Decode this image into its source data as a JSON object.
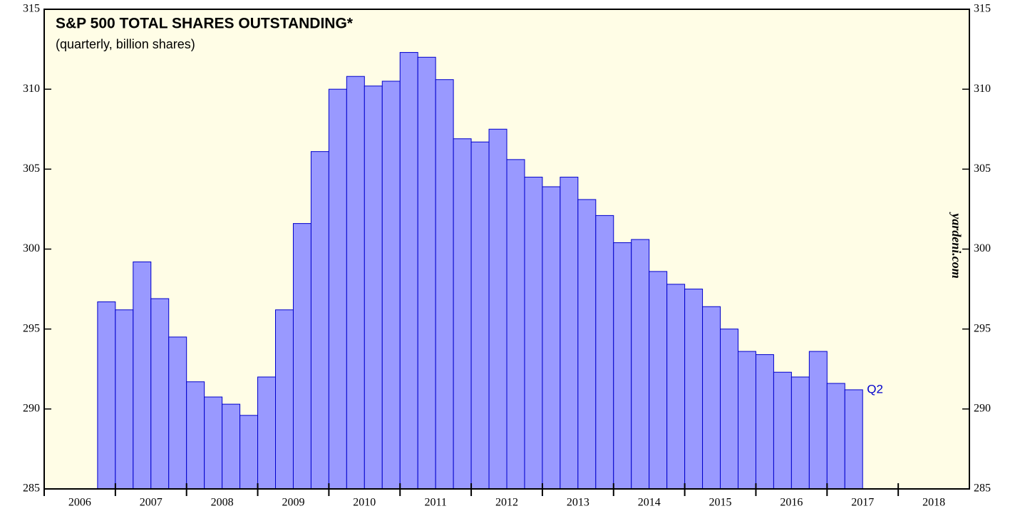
{
  "chart_data": {
    "type": "bar",
    "title": "S&P 500 TOTAL SHARES OUTSTANDING*",
    "subtitle": "(quarterly, billion shares)",
    "annotation": "Q2",
    "source": "yardeni.com",
    "x": [
      2006.75,
      2007,
      2007.25,
      2007.5,
      2007.75,
      2008,
      2008.25,
      2008.5,
      2008.75,
      2009,
      2009.25,
      2009.5,
      2009.75,
      2010,
      2010.25,
      2010.5,
      2010.75,
      2011,
      2011.25,
      2011.5,
      2011.75,
      2012,
      2012.25,
      2012.5,
      2012.75,
      2013,
      2013.25,
      2013.5,
      2013.75,
      2014,
      2014.25,
      2014.5,
      2014.75,
      2015,
      2015.25,
      2015.5,
      2015.75,
      2016,
      2016.25,
      2016.5,
      2016.75,
      2017,
      2017.25
    ],
    "values": [
      296.7,
      296.2,
      299.2,
      296.9,
      294.5,
      291.7,
      290.75,
      290.3,
      289.6,
      292.0,
      296.2,
      301.6,
      306.1,
      310.0,
      310.8,
      310.2,
      310.5,
      312.3,
      312.0,
      310.6,
      306.9,
      306.7,
      307.5,
      305.6,
      304.5,
      303.9,
      304.5,
      303.1,
      302.1,
      300.4,
      300.6,
      298.6,
      297.8,
      297.5,
      296.4,
      295.0,
      293.6,
      293.4,
      292.3,
      292.0,
      293.6,
      291.6,
      291.2
    ],
    "color": "#9999ff",
    "edge_color": "#0000cc",
    "background": "#fffde6",
    "xlim": [
      2006,
      2019
    ],
    "xticks": [
      2006,
      2007,
      2008,
      2009,
      2010,
      2011,
      2012,
      2013,
      2014,
      2015,
      2016,
      2017,
      2018
    ],
    "ylim": [
      285,
      315
    ],
    "yticks": [
      285,
      290,
      295,
      300,
      305,
      310,
      315
    ]
  }
}
